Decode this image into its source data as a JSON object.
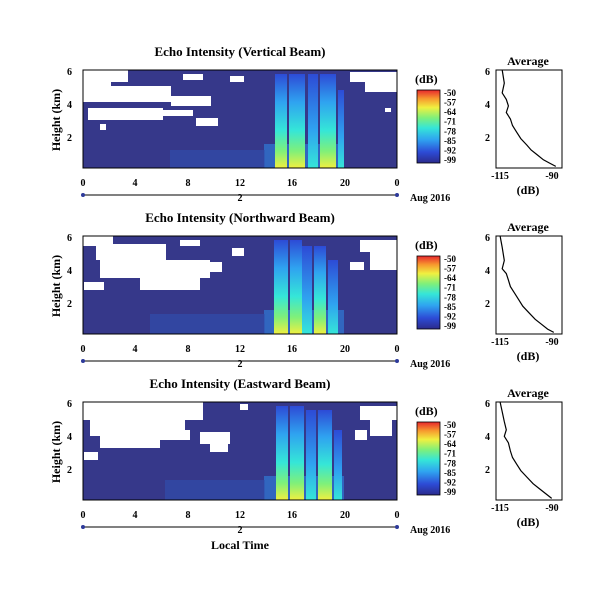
{
  "x_axis": {
    "label": "Local Time",
    "tick_labels": [
      "0",
      "4",
      "8",
      "12",
      "16",
      "20",
      "0"
    ],
    "day_marker": "2",
    "date_label": "Aug 2016"
  },
  "colorbar": {
    "unit": "(dB)",
    "tick_labels": [
      "-50",
      "-57",
      "-64",
      "-71",
      "-78",
      "-85",
      "-92",
      "-99"
    ]
  },
  "chart_data": [
    {
      "type": "heatmap",
      "title": "Echo Intensity (Vertical Beam)",
      "xlabel": "",
      "ylabel": "Height (km)",
      "xlim": [
        0,
        24
      ],
      "ylim": [
        0,
        6
      ],
      "y_tick_labels": [
        "6",
        "4",
        "2"
      ],
      "x_tick_labels": [
        "0",
        "4",
        "8",
        "12",
        "16",
        "20",
        "0"
      ],
      "colorbar_range_db": [
        -99,
        -50
      ],
      "colorbar_ticks": [
        -50,
        -57,
        -64,
        -71,
        -78,
        -85,
        -92,
        -99
      ],
      "strong_echo_intervals_lt": [
        [
          14.5,
          19.5
        ]
      ],
      "no_data_regions_note": "white"
    },
    {
      "type": "line",
      "title": "Average",
      "xlabel": "(dB)",
      "x_tick_labels": [
        "-115",
        "-90"
      ],
      "y_tick_labels": [
        "6",
        "4",
        "2"
      ],
      "xlim": [
        -120,
        -88
      ],
      "ylim": [
        0,
        6
      ],
      "x": [
        -117,
        -116,
        -117,
        -115,
        -114,
        -115,
        -113,
        -112,
        -110,
        -108,
        -105,
        -103,
        -100,
        -97,
        -94,
        -91
      ],
      "y": [
        6.0,
        5.2,
        4.6,
        4.2,
        3.8,
        3.4,
        3.0,
        2.6,
        2.2,
        1.8,
        1.4,
        1.1,
        0.8,
        0.5,
        0.3,
        0.1
      ]
    },
    {
      "type": "heatmap",
      "title": "Echo Intensity (Northward Beam)",
      "xlabel": "",
      "ylabel": "Height (km)",
      "xlim": [
        0,
        24
      ],
      "ylim": [
        0,
        6
      ],
      "y_tick_labels": [
        "6",
        "4",
        "2"
      ],
      "x_tick_labels": [
        "0",
        "4",
        "8",
        "12",
        "16",
        "20",
        "0"
      ],
      "colorbar_range_db": [
        -99,
        -50
      ],
      "colorbar_ticks": [
        -50,
        -57,
        -64,
        -71,
        -78,
        -85,
        -92,
        -99
      ],
      "strong_echo_intervals_lt": [
        [
          14.5,
          19.5
        ]
      ]
    },
    {
      "type": "line",
      "title": "Average",
      "xlabel": "(dB)",
      "x_tick_labels": [
        "-115",
        "-90"
      ],
      "y_tick_labels": [
        "6",
        "4",
        "2"
      ],
      "xlim": [
        -120,
        -88
      ],
      "ylim": [
        0,
        6
      ],
      "x": [
        -118,
        -117,
        -116,
        -117,
        -115,
        -114,
        -113,
        -111,
        -109,
        -107,
        -104,
        -101,
        -98,
        -95,
        -92
      ],
      "y": [
        6.0,
        5.3,
        4.5,
        4.0,
        3.7,
        3.3,
        2.9,
        2.5,
        2.1,
        1.7,
        1.3,
        0.9,
        0.6,
        0.3,
        0.1
      ]
    },
    {
      "type": "heatmap",
      "title": "Echo Intensity (Eastward Beam)",
      "xlabel": "Local Time",
      "ylabel": "Height (km)",
      "xlim": [
        0,
        24
      ],
      "ylim": [
        0,
        6
      ],
      "y_tick_labels": [
        "6",
        "4",
        "2"
      ],
      "x_tick_labels": [
        "0",
        "4",
        "8",
        "12",
        "16",
        "20",
        "0"
      ],
      "colorbar_range_db": [
        -99,
        -50
      ],
      "colorbar_ticks": [
        -50,
        -57,
        -64,
        -71,
        -78,
        -85,
        -92,
        -99
      ],
      "strong_echo_intervals_lt": [
        [
          14.5,
          19.5
        ]
      ]
    },
    {
      "type": "line",
      "title": "Average",
      "xlabel": "(dB)",
      "x_tick_labels": [
        "-115",
        "-90"
      ],
      "y_tick_labels": [
        "6",
        "4",
        "2"
      ],
      "xlim": [
        -120,
        -88
      ],
      "ylim": [
        0,
        6
      ],
      "x": [
        -118,
        -117,
        -116,
        -115,
        -116,
        -114,
        -113,
        -112,
        -110,
        -108,
        -105,
        -102,
        -99,
        -96,
        -93
      ],
      "y": [
        6.0,
        5.4,
        4.8,
        4.3,
        3.9,
        3.5,
        3.0,
        2.6,
        2.2,
        1.8,
        1.4,
        1.0,
        0.7,
        0.4,
        0.1
      ]
    }
  ]
}
